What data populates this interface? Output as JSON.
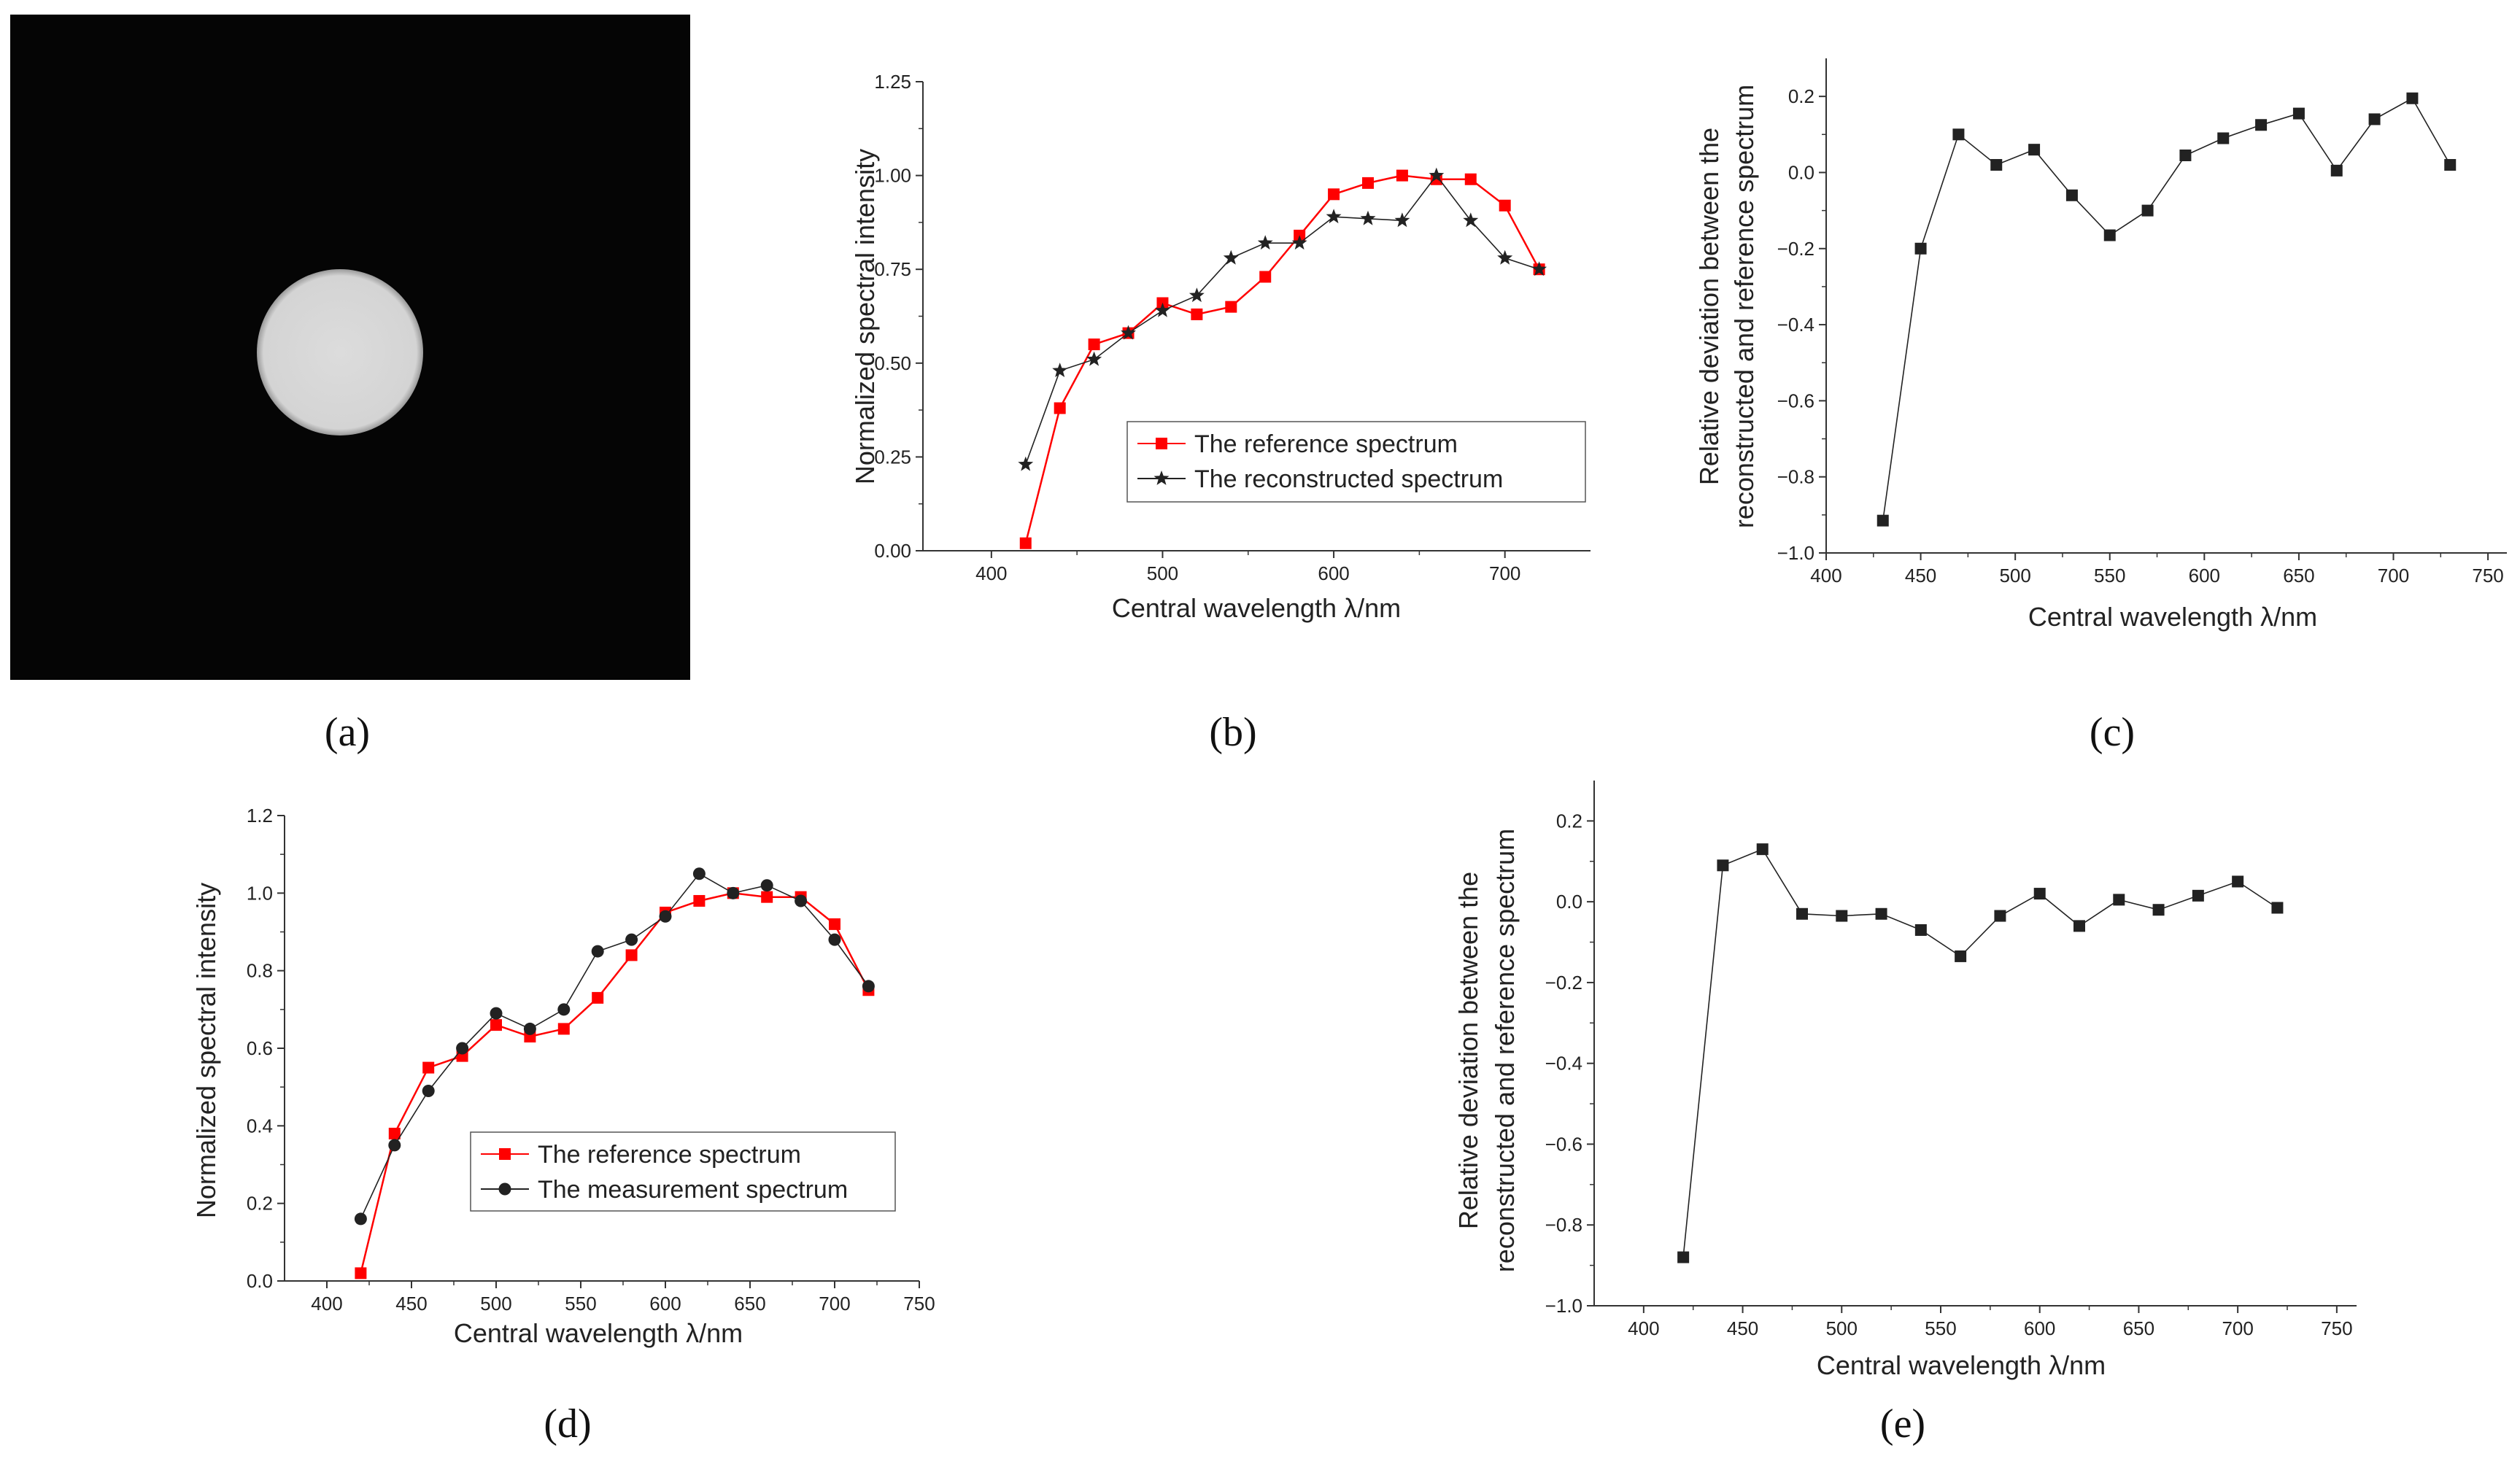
{
  "image_panel": {
    "label": "(a)"
  },
  "chart_data": [
    {
      "id": "b",
      "type": "line",
      "panel_label": "(b)",
      "xlabel": "Central wavelength λ/nm",
      "ylabel": "Normalized spectral intensity",
      "xlim": [
        360,
        750
      ],
      "ylim": [
        0,
        1.25
      ],
      "xticks": [
        400,
        500,
        600,
        700
      ],
      "yticks": [
        "0.00",
        "0.25",
        "0.50",
        "0.75",
        "1.00",
        "1.25"
      ],
      "legend_position": "middle",
      "series": [
        {
          "name": "The reference spectrum",
          "color": "#ff0000",
          "marker": "square",
          "x": [
            420,
            440,
            460,
            480,
            500,
            520,
            540,
            560,
            580,
            600,
            620,
            640,
            660,
            680,
            700,
            720
          ],
          "y": [
            0.02,
            0.38,
            0.55,
            0.58,
            0.66,
            0.63,
            0.65,
            0.73,
            0.84,
            0.95,
            0.98,
            1.0,
            0.99,
            0.99,
            0.92,
            0.75
          ]
        },
        {
          "name": "The reconstructed spectrum",
          "color": "#222222",
          "marker": "star",
          "x": [
            420,
            440,
            460,
            480,
            500,
            520,
            540,
            560,
            580,
            600,
            620,
            640,
            660,
            680,
            700,
            720
          ],
          "y": [
            0.23,
            0.48,
            0.51,
            0.58,
            0.64,
            0.68,
            0.78,
            0.82,
            0.82,
            0.89,
            0.885,
            0.88,
            1.0,
            0.88,
            0.78,
            0.75
          ]
        }
      ]
    },
    {
      "id": "c",
      "type": "scatter",
      "panel_label": "(c)",
      "xlabel": "Central wavelength λ/nm",
      "ylabel_lines": [
        "Relative deviation between the",
        "reconstructed and reference spectrum"
      ],
      "xlim": [
        400,
        760
      ],
      "ylim": [
        -1.0,
        0.3
      ],
      "xticks": [
        400,
        450,
        500,
        550,
        600,
        650,
        700,
        750
      ],
      "yticks": [
        "−1.0",
        "−0.8",
        "−0.6",
        "−0.4",
        "−0.2",
        "0.0",
        "0.2"
      ],
      "series": [
        {
          "name": "Relative deviation",
          "color": "#222222",
          "marker": "square",
          "x": [
            430,
            450,
            470,
            490,
            510,
            530,
            550,
            570,
            590,
            610,
            630,
            650,
            670,
            690,
            710,
            730
          ],
          "y": [
            -0.915,
            -0.2,
            0.1,
            0.02,
            0.06,
            -0.06,
            -0.165,
            -0.1,
            0.045,
            0.09,
            0.125,
            0.155,
            0.005,
            0.14,
            0.195,
            0.02
          ]
        }
      ]
    },
    {
      "id": "d",
      "type": "line",
      "panel_label": "(d)",
      "xlabel": "Central wavelength λ/nm",
      "ylabel": "Normalized spectral intensity",
      "xlim": [
        375,
        750
      ],
      "ylim": [
        0,
        1.2
      ],
      "xticks": [
        400,
        450,
        500,
        550,
        600,
        650,
        700,
        750
      ],
      "yticks": [
        "0.0",
        "0.2",
        "0.4",
        "0.6",
        "0.8",
        "1.0",
        "1.2"
      ],
      "legend_position": "bottom-center",
      "series": [
        {
          "name": "The reference spectrum",
          "color": "#ff0000",
          "marker": "square",
          "x": [
            420,
            440,
            460,
            480,
            500,
            520,
            540,
            560,
            580,
            600,
            620,
            640,
            660,
            680,
            700,
            720
          ],
          "y": [
            0.02,
            0.38,
            0.55,
            0.58,
            0.66,
            0.63,
            0.65,
            0.73,
            0.84,
            0.95,
            0.98,
            1.0,
            0.99,
            0.99,
            0.92,
            0.75
          ]
        },
        {
          "name": "The measurement spectrum",
          "color": "#222222",
          "marker": "circle",
          "x": [
            420,
            440,
            460,
            480,
            500,
            520,
            540,
            560,
            580,
            600,
            620,
            640,
            660,
            680,
            700,
            720
          ],
          "y": [
            0.16,
            0.35,
            0.49,
            0.6,
            0.69,
            0.65,
            0.7,
            0.85,
            0.88,
            0.94,
            1.05,
            1.0,
            1.02,
            0.98,
            0.88,
            0.76
          ]
        }
      ]
    },
    {
      "id": "e",
      "type": "scatter",
      "panel_label": "(e)",
      "xlabel": "Central wavelength λ/nm",
      "ylabel_lines": [
        "Relative deviation between the",
        "reconstructed and reference spectrum"
      ],
      "xlim": [
        375,
        760
      ],
      "ylim": [
        -1.0,
        0.3
      ],
      "xticks": [
        400,
        450,
        500,
        550,
        600,
        650,
        700,
        750
      ],
      "yticks": [
        "−1.0",
        "−0.8",
        "−0.6",
        "−0.4",
        "−0.2",
        "0.0",
        "0.2"
      ],
      "series": [
        {
          "name": "Relative deviation",
          "color": "#222222",
          "marker": "square",
          "x": [
            420,
            440,
            460,
            480,
            500,
            520,
            540,
            560,
            580,
            600,
            620,
            640,
            660,
            680,
            700,
            720
          ],
          "y": [
            -0.88,
            0.09,
            0.13,
            -0.03,
            -0.035,
            -0.03,
            -0.07,
            -0.135,
            -0.035,
            0.02,
            -0.06,
            0.005,
            -0.02,
            0.015,
            0.05,
            -0.015
          ]
        }
      ]
    }
  ]
}
